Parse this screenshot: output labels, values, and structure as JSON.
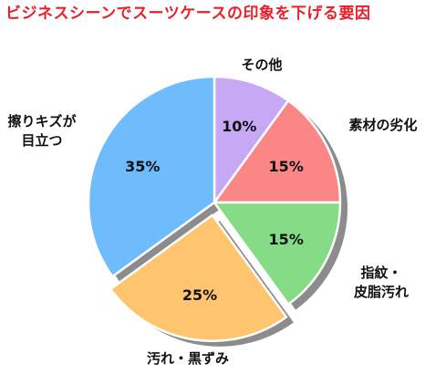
{
  "chart_data": {
    "type": "pie",
    "title": "ビジネスシーンでスーツケースの印象を下げる要因",
    "slices": [
      {
        "label": [
          "その他"
        ],
        "value": 10,
        "value_label": "10%",
        "color": "#c6a8f4"
      },
      {
        "label": [
          "素材の劣化"
        ],
        "value": 15,
        "value_label": "15%",
        "color": "#fa8686"
      },
      {
        "label": [
          "指紋・",
          "皮脂汚れ"
        ],
        "value": 15,
        "value_label": "15%",
        "color": "#86dc86"
      },
      {
        "label": [
          "汚れ・黒ずみ"
        ],
        "value": 25,
        "value_label": "25%",
        "color": "#fec46e"
      },
      {
        "label": [
          "擦りキズが",
          "目立つ"
        ],
        "value": 35,
        "value_label": "35%",
        "color": "#6fbcfd"
      }
    ],
    "shadow_color": "#8c8c8c",
    "exploded_slice": "汚れ・黒ずみ"
  }
}
